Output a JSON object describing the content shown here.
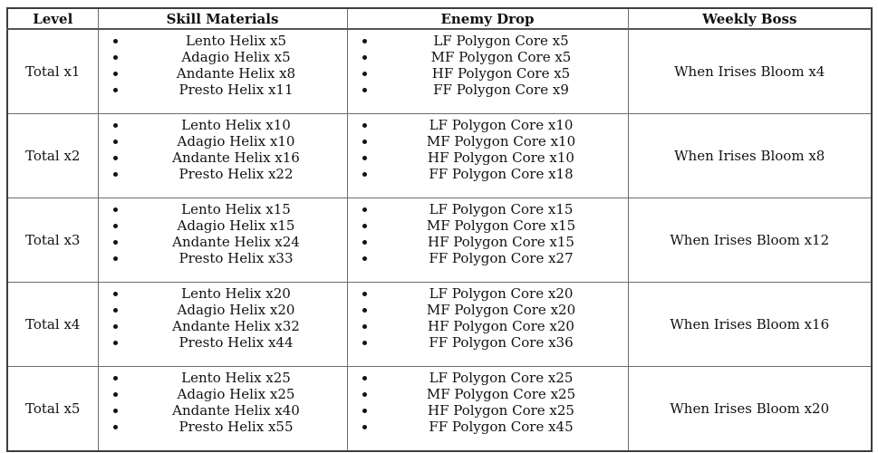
{
  "table": {
    "headers": [
      "Level",
      "Skill Materials",
      "Enemy Drop",
      "Weekly Boss"
    ],
    "rows": [
      {
        "level": "Total x1",
        "skill_materials": [
          "Lento Helix x5",
          "Adagio Helix x5",
          "Andante Helix x8",
          "Presto Helix x11"
        ],
        "enemy_drop": [
          "LF Polygon Core x5",
          "MF Polygon Core x5",
          "HF Polygon Core x5",
          "FF Polygon Core x9"
        ],
        "weekly_boss": "When Irises Bloom x4"
      },
      {
        "level": "Total x2",
        "skill_materials": [
          "Lento Helix x10",
          "Adagio Helix x10",
          "Andante Helix x16",
          "Presto Helix x22"
        ],
        "enemy_drop": [
          "LF Polygon Core x10",
          "MF Polygon Core x10",
          "HF Polygon Core x10",
          "FF Polygon Core x18"
        ],
        "weekly_boss": "When Irises Bloom x8"
      },
      {
        "level": "Total x3",
        "skill_materials": [
          "Lento Helix x15",
          "Adagio Helix x15",
          "Andante Helix x24",
          "Presto Helix x33"
        ],
        "enemy_drop": [
          "LF Polygon Core x15",
          "MF Polygon Core x15",
          "HF Polygon Core x15",
          "FF Polygon Core x27"
        ],
        "weekly_boss": "When Irises Bloom x12"
      },
      {
        "level": "Total x4",
        "skill_materials": [
          "Lento Helix x20",
          "Adagio Helix x20",
          "Andante Helix x32",
          "Presto Helix x44"
        ],
        "enemy_drop": [
          "LF Polygon Core x20",
          "MF Polygon Core x20",
          "HF Polygon Core x20",
          "FF Polygon Core x36"
        ],
        "weekly_boss": "When Irises Bloom x16"
      },
      {
        "level": "Total x5",
        "skill_materials": [
          "Lento Helix x25",
          "Adagio Helix x25",
          "Andante Helix x40",
          "Presto Helix x55"
        ],
        "enemy_drop": [
          "LF Polygon Core x25",
          "MF Polygon Core x25",
          "HF Polygon Core x25",
          "FF Polygon Core x45"
        ],
        "weekly_boss": "When Irises Bloom x20"
      }
    ]
  },
  "colors": {
    "outer_border": "#3d3d3d",
    "inner_border": "#6d6d6d",
    "text": "#111111",
    "background": "#ffffff"
  }
}
